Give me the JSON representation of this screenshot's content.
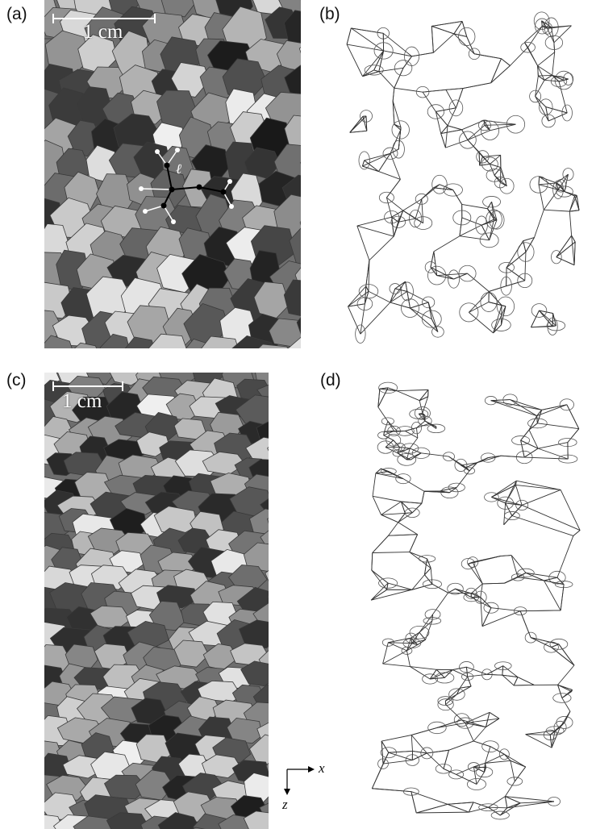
{
  "panels": {
    "a": {
      "label": "(a)",
      "scale": "1 cm",
      "vector_label": "ℓ"
    },
    "b": {
      "label": "(b)"
    },
    "c": {
      "label": "(c)",
      "scale": "1 cm"
    },
    "d": {
      "label": "(d)"
    }
  },
  "axes": {
    "x": "x",
    "z": "z"
  }
}
